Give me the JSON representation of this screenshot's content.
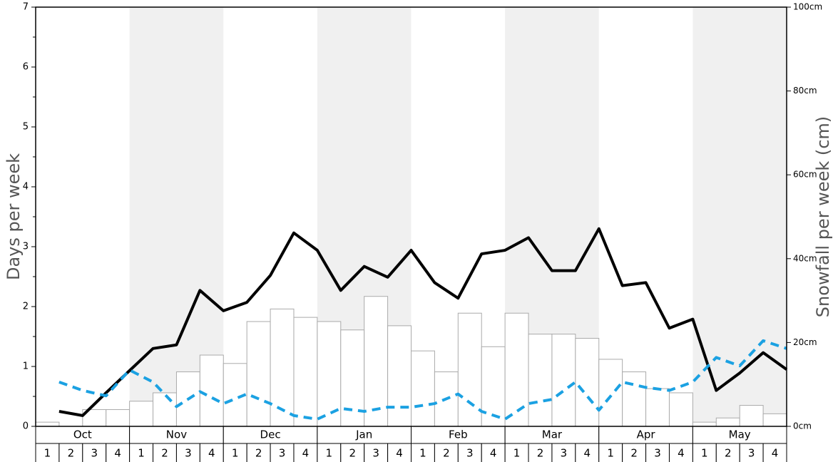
{
  "chart_data": {
    "type": "bar-line",
    "y_label": "Days per week",
    "y2_label": "Snowfall per week (cm)",
    "months": [
      "Oct",
      "Nov",
      "Dec",
      "Jan",
      "Feb",
      "Mar",
      "Apr",
      "May"
    ],
    "categories": [
      "1",
      "2",
      "3",
      "4",
      "1",
      "2",
      "3",
      "4",
      "1",
      "2",
      "3",
      "4",
      "1",
      "2",
      "3",
      "4",
      "1",
      "2",
      "3",
      "4",
      "1",
      "2",
      "3",
      "4",
      "1",
      "2",
      "3",
      "4",
      "1",
      "2",
      "3",
      "4"
    ],
    "ylim": [
      0,
      7
    ],
    "yticks": [
      0,
      1,
      2,
      3,
      4,
      5,
      6,
      7
    ],
    "y2lim": [
      0,
      100
    ],
    "y2ticks": [
      {
        "value": 0,
        "label": "0cm"
      },
      {
        "value": 20,
        "label": "20cm"
      },
      {
        "value": 40,
        "label": "40cm"
      },
      {
        "value": 60,
        "label": "60cm"
      },
      {
        "value": 80,
        "label": "80cm"
      },
      {
        "value": 100,
        "label": "100cm"
      }
    ],
    "shade_color": "#f0f0f0",
    "series": [
      {
        "type": "bar",
        "axis": "y2",
        "color": "#ffffff",
        "stroke": "#aaaaaa",
        "values": [
          1,
          0,
          4,
          4,
          6,
          8,
          13,
          17,
          15,
          25,
          28,
          26,
          25,
          23,
          31,
          24,
          18,
          13,
          27,
          19,
          27,
          22,
          22,
          21,
          16,
          13,
          9,
          8,
          1,
          2,
          5,
          3
        ]
      },
      {
        "type": "line",
        "color": "#000000",
        "dashed": false,
        "values": [
          0.25,
          0.18,
          0.56,
          0.93,
          1.3,
          1.36,
          2.27,
          1.93,
          2.07,
          2.52,
          3.23,
          2.94,
          2.27,
          2.67,
          2.49,
          2.94,
          2.4,
          2.14,
          2.88,
          2.94,
          3.15,
          2.6,
          2.6,
          3.3,
          2.35,
          2.4,
          1.64,
          1.79,
          0.6,
          0.89,
          1.23,
          0.95
        ]
      },
      {
        "type": "line",
        "color": "#1ba1e2",
        "dashed": true,
        "values": [
          0.74,
          0.6,
          0.51,
          0.94,
          0.74,
          0.33,
          0.58,
          0.38,
          0.54,
          0.38,
          0.18,
          0.12,
          0.3,
          0.25,
          0.32,
          0.32,
          0.38,
          0.54,
          0.25,
          0.12,
          0.38,
          0.45,
          0.74,
          0.27,
          0.74,
          0.65,
          0.6,
          0.74,
          1.15,
          1.01,
          1.43,
          1.3
        ]
      }
    ]
  }
}
